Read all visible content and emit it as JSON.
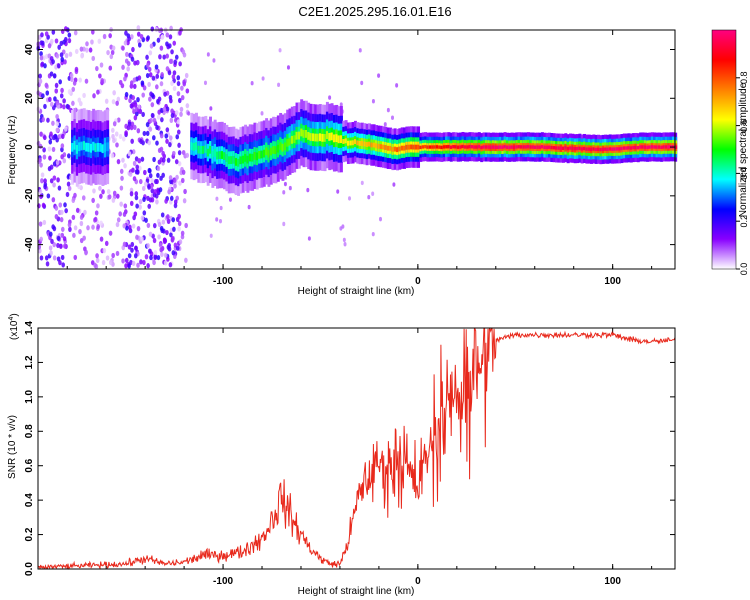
{
  "title": "C2E1.2025.295.16.01.E16",
  "chart_data": [
    {
      "type": "heatmap",
      "xlabel": "Height of straight line (km)",
      "ylabel": "Frequency (Hz)",
      "xlim": [
        -195,
        132
      ],
      "ylim": [
        -50,
        48
      ],
      "xticks": [
        -100,
        0,
        100
      ],
      "xtick_labels": [
        "-100",
        "0",
        "100"
      ],
      "yticks": [
        -40,
        -20,
        0,
        20,
        40
      ],
      "ytick_labels": [
        "-40",
        "-20",
        "0",
        "20",
        "40"
      ],
      "colorbar": {
        "label": "Normalized spectral amplitude",
        "range": [
          0,
          1
        ],
        "ticks": [
          0,
          0.2,
          0.4,
          0.6,
          0.8
        ],
        "tick_labels": [
          "0.0",
          "0.2",
          "0.4",
          "0.6",
          "0.8"
        ],
        "colormap": [
          "#ffffff",
          "#8800ff",
          "#0000ff",
          "#00ffff",
          "#00ff00",
          "#ffff00",
          "#ff8000",
          "#ff0000",
          "#ff0080"
        ]
      },
      "track_center_hz": [
        [
          -175,
          0
        ],
        [
          -150,
          0
        ],
        [
          -120,
          1
        ],
        [
          -110,
          -1
        ],
        [
          -95,
          -6
        ],
        [
          -85,
          -4
        ],
        [
          -70,
          0
        ],
        [
          -60,
          6
        ],
        [
          -55,
          4
        ],
        [
          -45,
          4
        ],
        [
          -35,
          2
        ],
        [
          -25,
          1
        ],
        [
          -12,
          -1
        ],
        [
          -5,
          0
        ],
        [
          0,
          0
        ],
        [
          20,
          0
        ],
        [
          60,
          0
        ],
        [
          95,
          -1
        ],
        [
          115,
          0
        ],
        [
          130,
          0
        ]
      ]
    },
    {
      "type": "line",
      "xlabel": "Height of straight line (km)",
      "ylabel": "SNR (10 * v/v)",
      "y_multiplier_label": "(x10",
      "y_multiplier_exp": "4",
      "y_multiplier_close": ")",
      "xlim": [
        -195,
        132
      ],
      "ylim": [
        0,
        1.4
      ],
      "xticks": [
        -100,
        0,
        100
      ],
      "xtick_labels": [
        "-100",
        "0",
        "100"
      ],
      "yticks": [
        0,
        0.2,
        0.4,
        0.6,
        0.8,
        1.0,
        1.2,
        1.4
      ],
      "ytick_labels": [
        "0.0",
        "0.2",
        "0.4",
        "0.6",
        "0.8",
        "1.0",
        "1.2",
        "1.4"
      ],
      "color": "#e8291c",
      "series": [
        {
          "name": "SNR",
          "x": [
            -195,
            -170,
            -150,
            -140,
            -130,
            -120,
            -110,
            -100,
            -90,
            -80,
            -75,
            -70,
            -65,
            -60,
            -55,
            -50,
            -45,
            -40,
            -35,
            -30,
            -25,
            -20,
            -15,
            -10,
            -5,
            0,
            5,
            10,
            15,
            20,
            25,
            30,
            35,
            40,
            50,
            60,
            80,
            100,
            110,
            120,
            132
          ],
          "y": [
            0.01,
            0.02,
            0.03,
            0.06,
            0.03,
            0.04,
            0.08,
            0.08,
            0.1,
            0.18,
            0.28,
            0.42,
            0.3,
            0.2,
            0.12,
            0.06,
            0.03,
            0.03,
            0.2,
            0.45,
            0.55,
            0.62,
            0.62,
            0.68,
            0.58,
            0.45,
            0.68,
            0.82,
            0.9,
            1.0,
            1.1,
            1.2,
            1.28,
            1.33,
            1.36,
            1.36,
            1.36,
            1.36,
            1.33,
            1.32,
            1.33
          ]
        }
      ]
    }
  ]
}
